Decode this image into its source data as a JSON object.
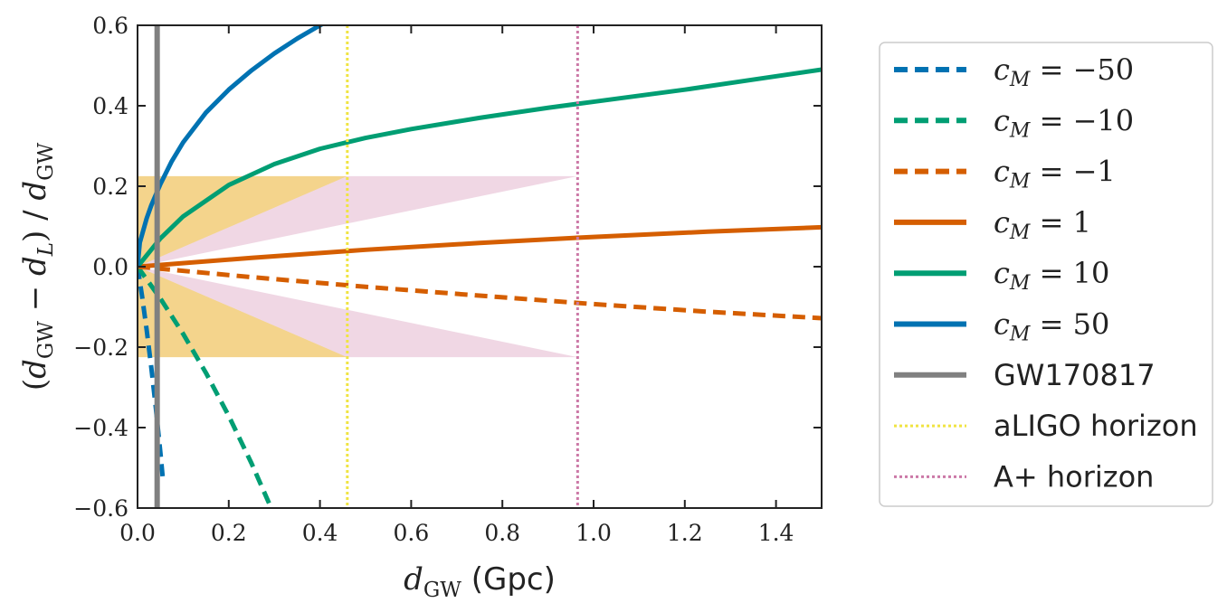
{
  "chart_data": {
    "type": "line",
    "xlabel": "d_GW (Gpc)",
    "ylabel": "(d_GW − d_L) / d_GW",
    "xlim": [
      0.0,
      1.5
    ],
    "ylim": [
      -0.6,
      0.6
    ],
    "x_ticks": [
      "0.0",
      "0.2",
      "0.4",
      "0.6",
      "0.8",
      "1.0",
      "1.2",
      "1.4"
    ],
    "y_ticks": [
      "0.6",
      "0.4",
      "0.2",
      "0.0",
      "−0.2",
      "−0.4",
      "−0.6"
    ],
    "grid": false,
    "legend_position": "outside-right",
    "series": [
      {
        "name": "c_M = −50",
        "label_parts": [
          "−50"
        ],
        "style": "dashed",
        "color": "#0072b2",
        "x": [
          0.0,
          0.01,
          0.02,
          0.03,
          0.04,
          0.05,
          0.055
        ],
        "y": [
          0.0,
          -0.074,
          -0.157,
          -0.249,
          -0.35,
          -0.461,
          -0.521
        ]
      },
      {
        "name": "c_M = −10",
        "label_parts": [
          "−10"
        ],
        "style": "dashed",
        "color": "#009e73",
        "x": [
          0.0,
          0.05,
          0.1,
          0.15,
          0.2,
          0.25,
          0.3,
          0.31
        ],
        "y": [
          0.0,
          -0.079,
          -0.167,
          -0.264,
          -0.371,
          -0.489,
          -0.618,
          -0.645
        ]
      },
      {
        "name": "c_M = −1",
        "label_parts": [
          "−1"
        ],
        "style": "dashed",
        "color": "#d55e00",
        "x": [
          0.0,
          0.25,
          0.5,
          0.75,
          1.0,
          1.25,
          1.5
        ],
        "y": [
          0.0,
          -0.026,
          -0.05,
          -0.072,
          -0.093,
          -0.112,
          -0.128
        ]
      },
      {
        "name": "c_M = 1",
        "label_parts": [
          "1"
        ],
        "style": "solid",
        "color": "#d55e00",
        "x": [
          0.0,
          0.25,
          0.5,
          0.75,
          1.0,
          1.25,
          1.5
        ],
        "y": [
          0.0,
          0.022,
          0.042,
          0.059,
          0.074,
          0.087,
          0.098
        ]
      },
      {
        "name": "c_M = 10",
        "label_parts": [
          "10"
        ],
        "style": "solid",
        "color": "#009e73",
        "x": [
          0.0,
          0.05,
          0.1,
          0.2,
          0.3,
          0.4,
          0.5,
          0.6,
          0.75,
          0.9,
          1.0,
          1.2,
          1.35,
          1.5
        ],
        "y": [
          0.0,
          0.07,
          0.125,
          0.203,
          0.255,
          0.293,
          0.32,
          0.342,
          0.37,
          0.395,
          0.41,
          0.44,
          0.465,
          0.49
        ]
      },
      {
        "name": "c_M = 50",
        "label_parts": [
          "50"
        ],
        "style": "solid",
        "color": "#0072b2",
        "x": [
          0.0,
          0.005,
          0.01,
          0.02,
          0.03,
          0.05,
          0.075,
          0.1,
          0.15,
          0.2,
          0.25,
          0.3,
          0.35,
          0.4,
          0.45
        ],
        "y": [
          0.0,
          0.06,
          0.08,
          0.12,
          0.152,
          0.205,
          0.262,
          0.309,
          0.383,
          0.44,
          0.488,
          0.53,
          0.567,
          0.6,
          0.63
        ]
      }
    ],
    "vertical_lines": [
      {
        "name": "GW170817",
        "x": 0.043,
        "style": "solid",
        "color": "#808080"
      },
      {
        "name": "aLIGO horizon",
        "x": 0.46,
        "style": "dotted",
        "color": "#f0e442"
      },
      {
        "name": "A+ horizon",
        "x": 0.965,
        "style": "dotted",
        "color": "#cc79a7"
      }
    ],
    "bands": [
      {
        "color": "#e69f00",
        "opacity": 0.45,
        "points": [
          [
            0.0,
            0.0
          ],
          [
            0.0,
            0.225
          ],
          [
            0.46,
            0.225
          ]
        ]
      },
      {
        "color": "#e69f00",
        "opacity": 0.45,
        "points": [
          [
            0.0,
            0.0
          ],
          [
            0.0,
            -0.225
          ],
          [
            0.46,
            -0.225
          ]
        ]
      },
      {
        "color": "#cc79a7",
        "opacity": 0.3,
        "points": [
          [
            0.0,
            0.0
          ],
          [
            0.46,
            0.225
          ],
          [
            0.965,
            0.225
          ]
        ]
      },
      {
        "color": "#cc79a7",
        "opacity": 0.3,
        "points": [
          [
            0.0,
            0.0
          ],
          [
            0.46,
            -0.225
          ],
          [
            0.965,
            -0.225
          ]
        ]
      }
    ],
    "legend": [
      {
        "label": "c_M = −50",
        "value": "−50",
        "kind": "math",
        "style": "dashed",
        "color": "#0072b2"
      },
      {
        "label": "c_M = −10",
        "value": "−10",
        "kind": "math",
        "style": "dashed",
        "color": "#009e73"
      },
      {
        "label": "c_M = −1",
        "value": "−1",
        "kind": "math",
        "style": "dashed",
        "color": "#d55e00"
      },
      {
        "label": "c_M = 1",
        "value": "1",
        "kind": "math",
        "style": "solid",
        "color": "#d55e00"
      },
      {
        "label": "c_M = 10",
        "value": "10",
        "kind": "math",
        "style": "solid",
        "color": "#009e73"
      },
      {
        "label": "c_M = 50",
        "value": "50",
        "kind": "math",
        "style": "solid",
        "color": "#0072b2"
      },
      {
        "label": "GW170817",
        "value": "GW170817",
        "kind": "text",
        "style": "solid",
        "color": "#808080"
      },
      {
        "label": "aLIGO horizon",
        "value": "aLIGO horizon",
        "kind": "text",
        "style": "dotted",
        "color": "#f0e442"
      },
      {
        "label": "A+ horizon",
        "value": "A+ horizon",
        "kind": "text",
        "style": "dotted",
        "color": "#cc79a7"
      }
    ]
  }
}
